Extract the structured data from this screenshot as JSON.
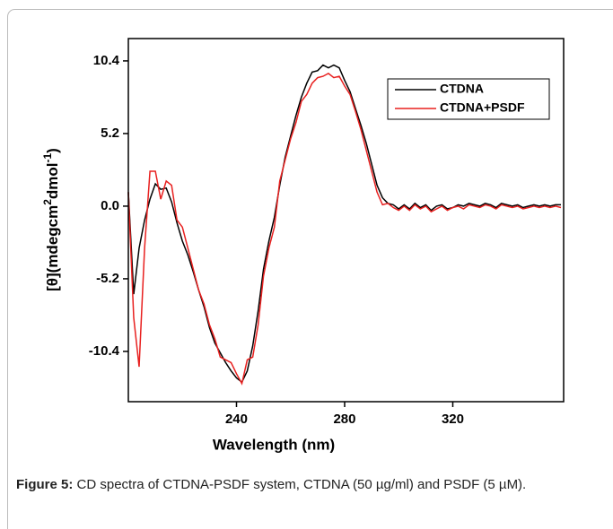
{
  "chart_data": {
    "type": "line",
    "y_label_parts": [
      "[θ](mdegcm",
      "2",
      "dmol",
      "-1",
      ")"
    ],
    "x_label": "Wavelength (nm)",
    "x": [
      200,
      202,
      204,
      206,
      208,
      210,
      212,
      214,
      216,
      218,
      220,
      222,
      224,
      226,
      228,
      230,
      232,
      234,
      236,
      238,
      240,
      242,
      244,
      246,
      248,
      250,
      252,
      254,
      256,
      258,
      260,
      262,
      264,
      266,
      268,
      270,
      272,
      274,
      276,
      278,
      280,
      282,
      284,
      286,
      288,
      290,
      292,
      294,
      296,
      298,
      300,
      302,
      304,
      306,
      308,
      310,
      312,
      314,
      316,
      318,
      320,
      322,
      324,
      326,
      328,
      330,
      332,
      334,
      336,
      338,
      340,
      342,
      344,
      346,
      348,
      350,
      352,
      354,
      356,
      358,
      360
    ],
    "series": [
      {
        "name": "CTDNA",
        "color": "#000000",
        "values": [
          1.0,
          -6.3,
          -3.0,
          -1.0,
          0.5,
          1.6,
          1.2,
          1.3,
          0.3,
          -1.2,
          -2.5,
          -3.5,
          -4.7,
          -6.0,
          -7.2,
          -8.7,
          -9.8,
          -10.5,
          -11.2,
          -11.8,
          -12.3,
          -12.6,
          -11.8,
          -10.0,
          -7.5,
          -4.5,
          -2.5,
          -0.8,
          1.5,
          3.5,
          5.0,
          6.5,
          7.8,
          8.8,
          9.6,
          9.7,
          10.1,
          9.9,
          10.1,
          9.9,
          9.0,
          8.2,
          7.0,
          5.8,
          4.5,
          3.0,
          1.5,
          0.6,
          0.2,
          0.1,
          -0.2,
          0.1,
          -0.2,
          0.2,
          -0.1,
          0.1,
          -0.3,
          0.0,
          0.1,
          -0.2,
          -0.1,
          0.1,
          0.0,
          0.2,
          0.1,
          0.0,
          0.2,
          0.1,
          -0.1,
          0.2,
          0.1,
          0.0,
          0.1,
          -0.1,
          0.0,
          0.1,
          0.0,
          0.1,
          0.0,
          0.1,
          0.1
        ]
      },
      {
        "name": "CTDNA+PSDF",
        "color": "#e8201f",
        "values": [
          1.0,
          -8.0,
          -11.5,
          -3.0,
          2.5,
          2.5,
          0.5,
          1.8,
          1.5,
          -1.0,
          -1.5,
          -3.0,
          -4.5,
          -6.0,
          -7.0,
          -8.5,
          -9.5,
          -10.8,
          -11.0,
          -11.2,
          -12.0,
          -12.7,
          -11.0,
          -10.8,
          -8.5,
          -5.0,
          -3.0,
          -1.5,
          1.8,
          3.3,
          4.8,
          6.0,
          7.5,
          8.0,
          8.8,
          9.2,
          9.3,
          9.5,
          9.2,
          9.3,
          8.6,
          8.0,
          6.8,
          5.5,
          4.0,
          2.5,
          1.0,
          0.1,
          0.2,
          -0.1,
          -0.3,
          0.0,
          -0.3,
          0.1,
          -0.2,
          0.0,
          -0.4,
          -0.2,
          0.0,
          -0.3,
          -0.1,
          0.0,
          -0.2,
          0.1,
          0.0,
          -0.1,
          0.1,
          0.0,
          -0.2,
          0.1,
          0.0,
          -0.1,
          0.0,
          -0.2,
          -0.1,
          0.0,
          -0.1,
          0.0,
          -0.1,
          0.0,
          -0.1
        ]
      }
    ],
    "xlim": [
      200,
      361
    ],
    "xticks": [
      240,
      280,
      320
    ],
    "ylim": [
      -14,
      12
    ],
    "yticks": [
      -10.4,
      -5.2,
      {
        "value": 0,
        "label": "0.0"
      },
      5.2,
      10.4
    ],
    "legend": "upper right"
  },
  "caption": {
    "label": "Figure 5:",
    "text": "CD spectra of CTDNA-PSDF system, CTDNA (50 µg/ml) and PSDF (5 µM)."
  }
}
